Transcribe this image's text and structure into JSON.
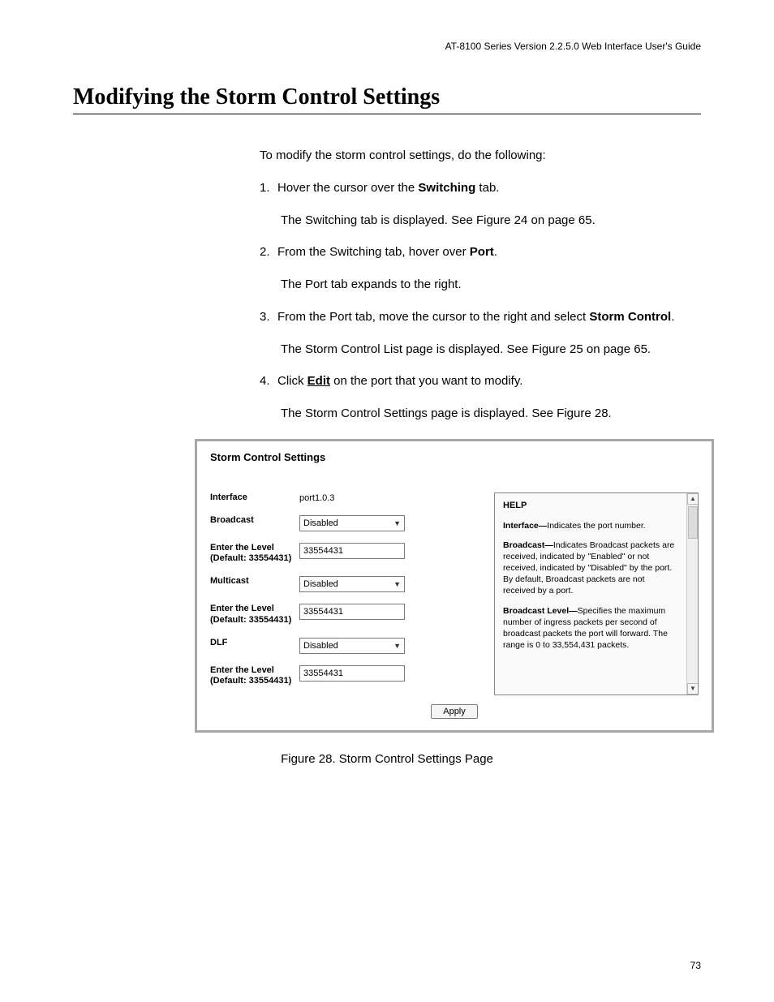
{
  "header": {
    "guide_title": "AT-8100 Series Version 2.2.5.0 Web Interface User's Guide"
  },
  "section": {
    "title": "Modifying the Storm Control Settings",
    "intro": "To modify the storm control settings, do the following:",
    "steps": {
      "s1_a": "Hover the cursor over the ",
      "s1_b": "Switching",
      "s1_c": " tab.",
      "s1_sub": "The Switching tab is displayed. See Figure 24 on page 65.",
      "s2_a": "From the Switching tab, hover over ",
      "s2_b": "Port",
      "s2_c": ".",
      "s2_sub": "The Port tab expands to the right.",
      "s3_a": "From the Port tab, move the cursor to the right and select ",
      "s3_b": "Storm Control",
      "s3_c": ".",
      "s3_sub": "The Storm Control List page is displayed. See Figure 25 on page 65.",
      "s4_a": "Click ",
      "s4_b": "Edit",
      "s4_c": " on the port that you want to modify.",
      "s4_sub": "The Storm Control Settings page is displayed. See Figure 28."
    }
  },
  "panel": {
    "title": "Storm Control Settings",
    "form": {
      "interface_label": "Interface",
      "interface_value": "port1.0.3",
      "broadcast_label": "Broadcast",
      "broadcast_value": "Disabled",
      "broadcast_level_label": "Enter the Level (Default: 33554431)",
      "broadcast_level_value": "33554431",
      "multicast_label": "Multicast",
      "multicast_value": "Disabled",
      "multicast_level_label": "Enter the Level (Default: 33554431)",
      "multicast_level_value": "33554431",
      "dlf_label": "DLF",
      "dlf_value": "Disabled",
      "dlf_level_label": "Enter the Level (Default: 33554431)",
      "dlf_level_value": "33554431",
      "apply_label": "Apply"
    },
    "help": {
      "title": "HELP",
      "item1_lead": "Interface—",
      "item1_text": "Indicates the port number.",
      "item2_lead": "Broadcast—",
      "item2_text": "Indicates Broadcast packets are received, indicated by \"Enabled\" or not received, indicated by \"Disabled\" by the port. By default, Broadcast packets are not received by a port.",
      "item3_lead": "Broadcast Level—",
      "item3_text": "Specifies the maximum number of ingress packets per second of broadcast packets the port will forward. The range is 0 to 33,554,431 packets."
    }
  },
  "figure_caption": "Figure 28. Storm Control Settings Page",
  "page_number": "73"
}
